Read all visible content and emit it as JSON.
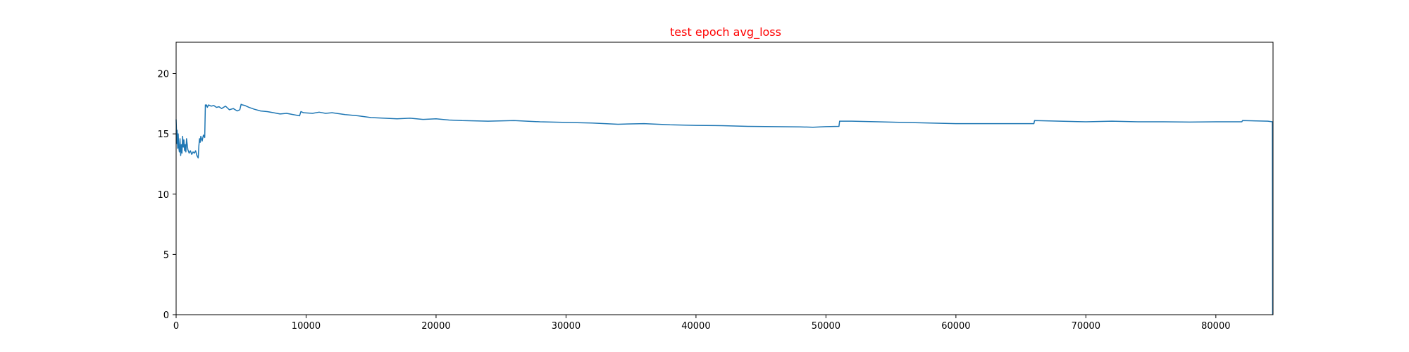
{
  "chart_data": {
    "type": "line",
    "title": "test epoch avg_loss",
    "title_color": "#ff0000",
    "line_color": "#1f77b4",
    "xlabel": "",
    "ylabel": "",
    "grid": false,
    "xlim": [
      0,
      84400
    ],
    "ylim": [
      0,
      22.6
    ],
    "x_ticks": [
      0,
      10000,
      20000,
      30000,
      40000,
      50000,
      60000,
      70000,
      80000
    ],
    "x_tick_labels": [
      "0",
      "10000",
      "20000",
      "30000",
      "40000",
      "50000",
      "60000",
      "70000",
      "80000"
    ],
    "y_ticks": [
      0,
      5,
      10,
      15,
      20
    ],
    "y_tick_labels": [
      "0",
      "5",
      "10",
      "15",
      "20"
    ],
    "series": [
      {
        "x": [
          0,
          20,
          50,
          80,
          120,
          160,
          200,
          250,
          300,
          350,
          400,
          450,
          500,
          550,
          600,
          650,
          700,
          750,
          800,
          900,
          1000,
          1100,
          1200,
          1300,
          1400,
          1500,
          1600,
          1700,
          1750,
          1800,
          1850,
          1900,
          2000,
          2100,
          2200,
          2250,
          2300,
          2350,
          2400,
          2500,
          2700,
          2900,
          3100,
          3300,
          3500,
          3800,
          4100,
          4400,
          4700,
          4900,
          5000,
          5100,
          5300,
          5600,
          6000,
          6500,
          7000,
          7500,
          8000,
          8500,
          9000,
          9500,
          9600,
          9800,
          10500,
          11000,
          11500,
          12000,
          13000,
          14000,
          15000,
          16000,
          17000,
          18000,
          19000,
          20000,
          21000,
          22000,
          24000,
          26000,
          28000,
          30000,
          32000,
          34000,
          36000,
          38000,
          40000,
          42000,
          44000,
          46000,
          48000,
          49000,
          50000,
          51000,
          51050,
          52000,
          54000,
          56000,
          58000,
          60000,
          62000,
          64000,
          66000,
          66050,
          68000,
          70000,
          72000,
          74000,
          76000,
          78000,
          80000,
          82000,
          82050,
          84000,
          84350,
          84370
        ],
        "values": [
          16.2,
          15.5,
          14.2,
          15.3,
          13.8,
          15.0,
          13.9,
          13.5,
          14.6,
          13.2,
          14.1,
          13.4,
          14.8,
          13.9,
          14.5,
          13.6,
          14.1,
          13.5,
          14.6,
          13.7,
          13.4,
          13.6,
          13.3,
          13.5,
          13.4,
          13.6,
          13.2,
          13.0,
          14.0,
          14.6,
          14.3,
          14.8,
          14.4,
          14.9,
          14.7,
          17.4,
          17.3,
          17.4,
          17.2,
          17.4,
          17.3,
          17.35,
          17.2,
          17.25,
          17.1,
          17.3,
          17.0,
          17.1,
          16.9,
          17.0,
          17.45,
          17.4,
          17.35,
          17.2,
          17.05,
          16.9,
          16.85,
          16.75,
          16.65,
          16.7,
          16.6,
          16.5,
          16.85,
          16.75,
          16.7,
          16.8,
          16.7,
          16.75,
          16.6,
          16.5,
          16.35,
          16.3,
          16.25,
          16.3,
          16.2,
          16.25,
          16.15,
          16.1,
          16.05,
          16.1,
          16.0,
          15.95,
          15.9,
          15.8,
          15.85,
          15.75,
          15.7,
          15.68,
          15.62,
          15.6,
          15.58,
          15.55,
          15.6,
          15.62,
          16.05,
          16.05,
          16.0,
          15.95,
          15.9,
          15.85,
          15.85,
          15.85,
          15.85,
          16.1,
          16.05,
          16.0,
          16.05,
          16.0,
          16.0,
          15.98,
          16.0,
          16.0,
          16.1,
          16.05,
          16.0,
          0.0
        ]
      }
    ]
  }
}
